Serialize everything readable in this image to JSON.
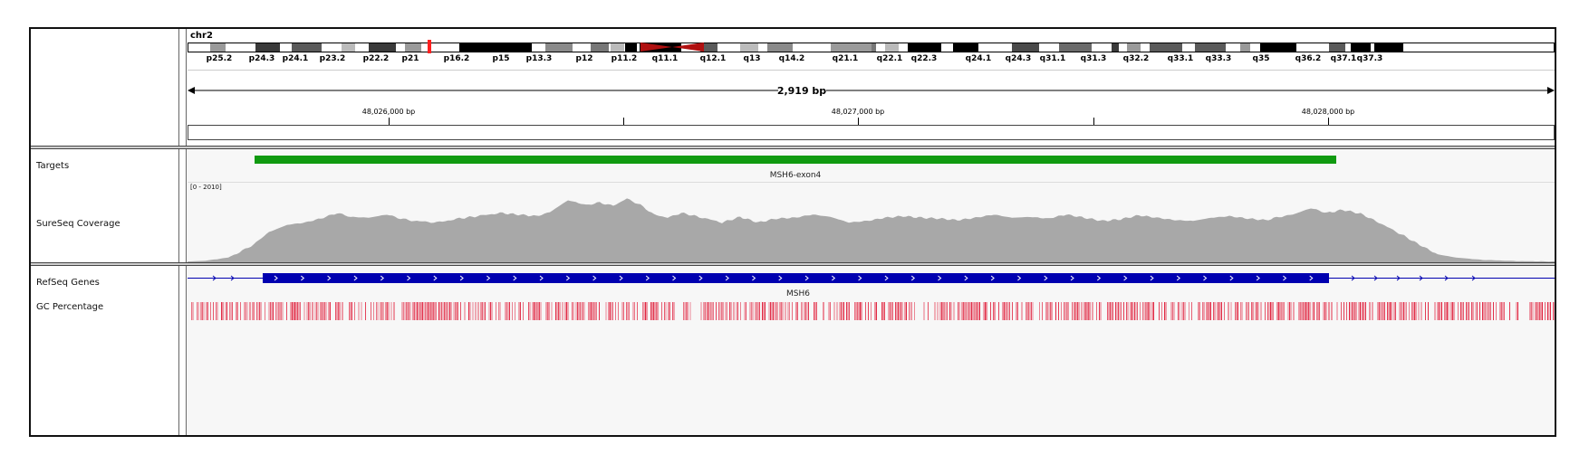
{
  "header": {
    "chromosome": "chr2",
    "span_label": "2,919 bp",
    "ruler_ticks": [
      "48,026,000 bp",
      "48,027,000 bp",
      "48,028,000 bp"
    ]
  },
  "ideogram": {
    "band_labels": [
      "p25.2",
      "p24.3",
      "p24.1",
      "p23.2",
      "p22.2",
      "p21",
      "p16.2",
      "p15",
      "p13.3",
      "p12",
      "p11.2",
      "q11.1",
      "q12.1",
      "q13",
      "q14.2",
      "q21.1",
      "q22.1",
      "q22.3",
      "q24.1",
      "q24.3",
      "q31.1",
      "q31.3",
      "q32.2",
      "q33.1",
      "q33.3",
      "q35",
      "q36.2",
      "q37.1",
      "q37.3"
    ]
  },
  "tracks": {
    "targets": {
      "label": "Targets",
      "feature_label": "MSH6-exon4",
      "color": "#109a10"
    },
    "coverage": {
      "label": "SureSeq Coverage",
      "range_label": "[0 - 2010]",
      "color": "#a8a8a8"
    },
    "refseq": {
      "label": "RefSeq Genes",
      "feature_label": "MSH6",
      "color": "#0000b0"
    },
    "gc": {
      "label": "GC Percentage",
      "color": "#e0203c"
    }
  }
}
